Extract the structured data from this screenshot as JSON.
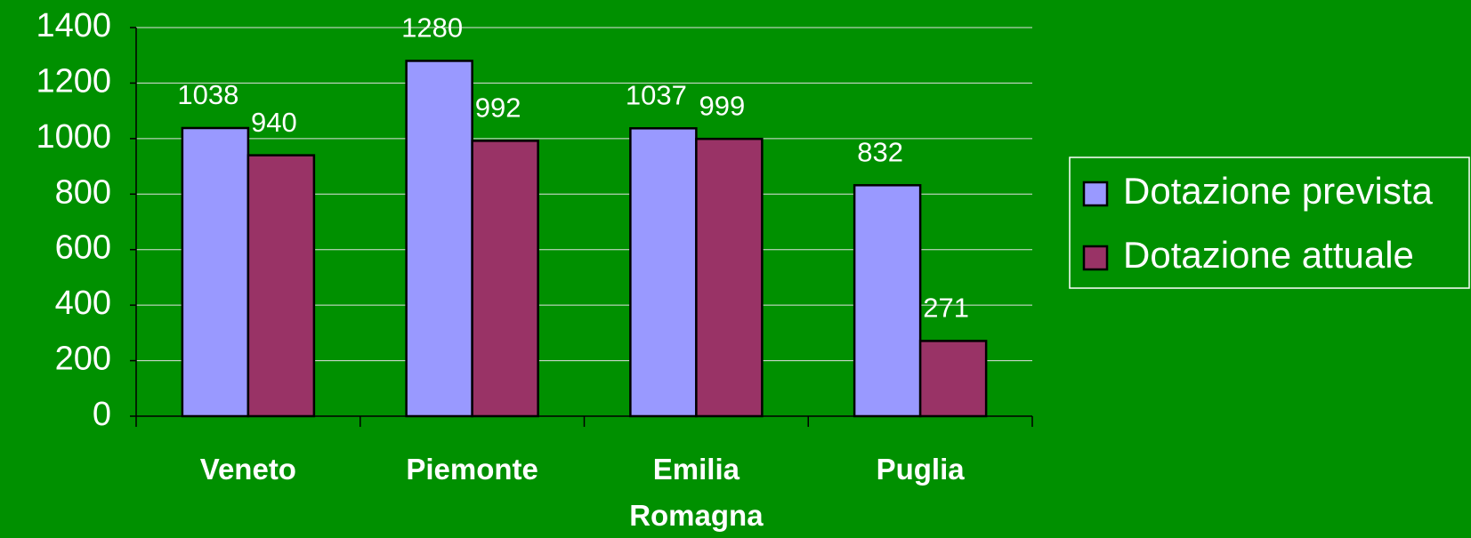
{
  "chart_data": {
    "type": "bar",
    "categories": [
      "Veneto",
      "Piemonte",
      "Emilia Romagna",
      "Puglia"
    ],
    "series": [
      {
        "name": "Dotazione prevista",
        "color": "#9999ff",
        "values": [
          1038,
          1280,
          1037,
          832
        ]
      },
      {
        "name": "Dotazione attuale",
        "color": "#993366",
        "values": [
          940,
          992,
          999,
          271
        ]
      }
    ],
    "ylim": [
      0,
      1400
    ],
    "yticks": [
      0,
      200,
      400,
      600,
      800,
      1000,
      1200,
      1400
    ],
    "grid": true,
    "legend": "right",
    "background": "#009000"
  }
}
